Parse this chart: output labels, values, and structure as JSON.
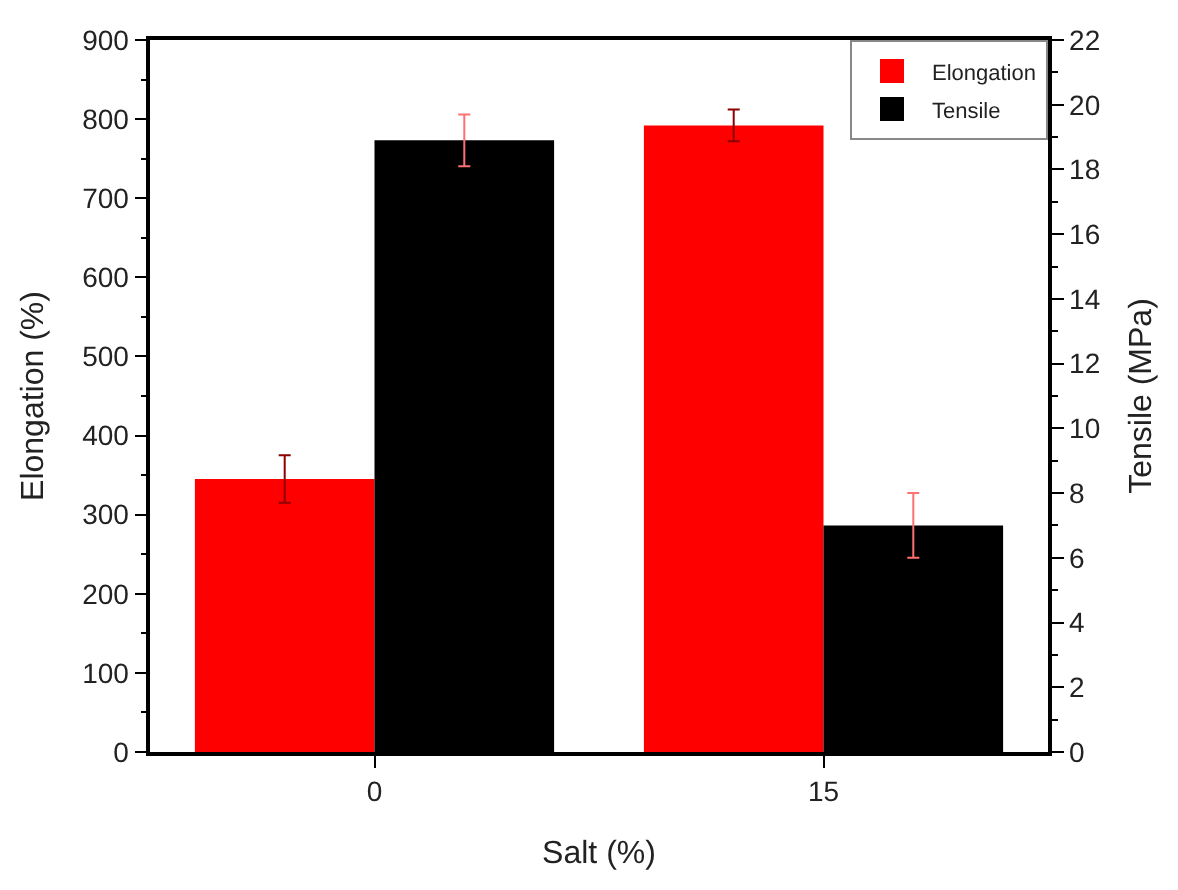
{
  "chart_data": {
    "type": "bar",
    "categories": [
      "0",
      "15"
    ],
    "xlabel": "Salt (%)",
    "ylabel": "Elongation (%)",
    "y2label": "Tensile (MPa)",
    "series": [
      {
        "name": "Elongation",
        "color": "#ff0000",
        "values": [
          345,
          792
        ],
        "errors": [
          30,
          20
        ]
      },
      {
        "name": "Tensile",
        "color": "#000000",
        "axis": "y2",
        "values": [
          18.9,
          7.0
        ],
        "errors": [
          0.8,
          1.0
        ]
      }
    ],
    "ylim": [
      0,
      900
    ],
    "yticks": [
      0,
      100,
      200,
      300,
      400,
      500,
      600,
      700,
      800,
      900
    ],
    "y2lim": [
      0,
      22
    ],
    "y2ticks": [
      0,
      2,
      4,
      6,
      8,
      10,
      12,
      14,
      16,
      18,
      20,
      22
    ],
    "legend": "top right"
  }
}
